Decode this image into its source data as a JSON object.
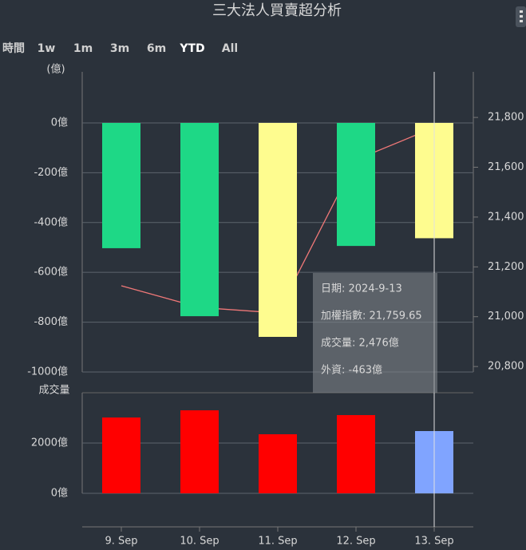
{
  "chart_data": {
    "type": "bar",
    "title": "三大法人買賣超分析",
    "range_label": "時間",
    "range_buttons": [
      "1w",
      "1m",
      "3m",
      "6m",
      "YTD",
      "All"
    ],
    "range_selected": 4,
    "categories": [
      "9. Sep",
      "10. Sep",
      "11. Sep",
      "12. Sep",
      "13. Sep"
    ],
    "ylabel": "(億)",
    "ylim": [
      -1000,
      205
    ],
    "yticks": [
      {
        "value": 0,
        "label": "0億"
      },
      {
        "value": -200,
        "label": "-200億"
      },
      {
        "value": -400,
        "label": "-400億"
      },
      {
        "value": -600,
        "label": "-600億"
      },
      {
        "value": -800,
        "label": "-800億"
      },
      {
        "value": -1000,
        "label": "-1000億"
      }
    ],
    "y2lim": [
      20778,
      21983
    ],
    "y2ticks": [
      {
        "value": 21800,
        "label": "21,800"
      },
      {
        "value": 21600,
        "label": "21,600"
      },
      {
        "value": 21400,
        "label": "21,400"
      },
      {
        "value": 21200,
        "label": "21,200"
      },
      {
        "value": 21000,
        "label": "21,000"
      },
      {
        "value": 20800,
        "label": "20,800"
      }
    ],
    "grid": true,
    "series": [
      {
        "type": "bar",
        "values": [
          -503,
          -776,
          -859,
          -494,
          -463
        ],
        "colors": [
          "#1ed886",
          "#1ed886",
          "#fefc8f",
          "#1ed886",
          "#fefc8f"
        ]
      },
      {
        "type": "line",
        "axis": "y2",
        "color": "#f07878",
        "values": [
          21124,
          21037,
          21015,
          21630,
          21759.65
        ]
      }
    ],
    "volume": {
      "label": "成交量",
      "ylim": [
        0,
        4000
      ],
      "yticks": [
        {
          "value": 0,
          "label": "0億"
        },
        {
          "value": 2000,
          "label": "2000億"
        }
      ],
      "values": [
        3016,
        3302,
        2349,
        3111,
        2476
      ],
      "colors": [
        "#ff0000",
        "#ff0000",
        "#ff0000",
        "#ff0000",
        "#80a4ff"
      ]
    },
    "tooltip": {
      "index": 4,
      "lines": [
        "日期: 2024-9-13",
        "加權指數: 21,759.65",
        "成交量: 2,476億",
        "外資: -463億"
      ]
    }
  }
}
